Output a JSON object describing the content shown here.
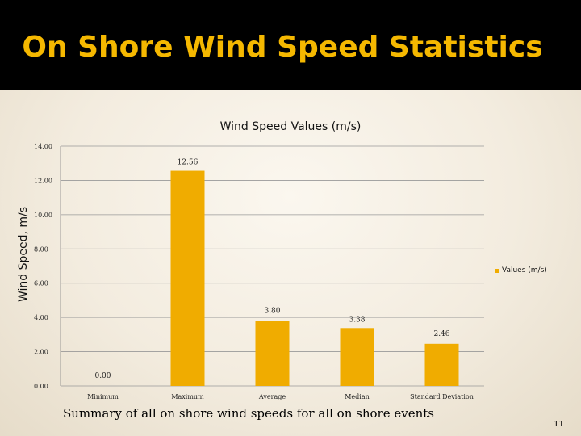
{
  "slide": {
    "title": "On Shore Wind Speed Statistics",
    "caption": "Summary of all on shore wind speeds for all on shore events",
    "page_number": "11"
  },
  "colors": {
    "bar": "#f0ac00",
    "title": "#f5b800",
    "title_bar": "#000000",
    "grid": "#999999"
  },
  "chart_data": {
    "type": "bar",
    "title": "Wind Speed Values (m/s)",
    "xlabel": "",
    "ylabel": "Wind Speed, m/s",
    "ylim": [
      0,
      14
    ],
    "yticks": [
      "0.00",
      "2.00",
      "4.00",
      "6.00",
      "8.00",
      "10.00",
      "12.00",
      "14.00"
    ],
    "categories": [
      "Minimum",
      "Maximum",
      "Average",
      "Median",
      "Standard Deviation"
    ],
    "series": [
      {
        "name": "Values (m/s)",
        "values": [
          0.0,
          12.56,
          3.8,
          3.38,
          2.46
        ],
        "data_labels": [
          "0.00",
          "12.56",
          "3.80",
          "3.38",
          "2.46"
        ]
      }
    ],
    "grid": true,
    "legend": "right"
  }
}
